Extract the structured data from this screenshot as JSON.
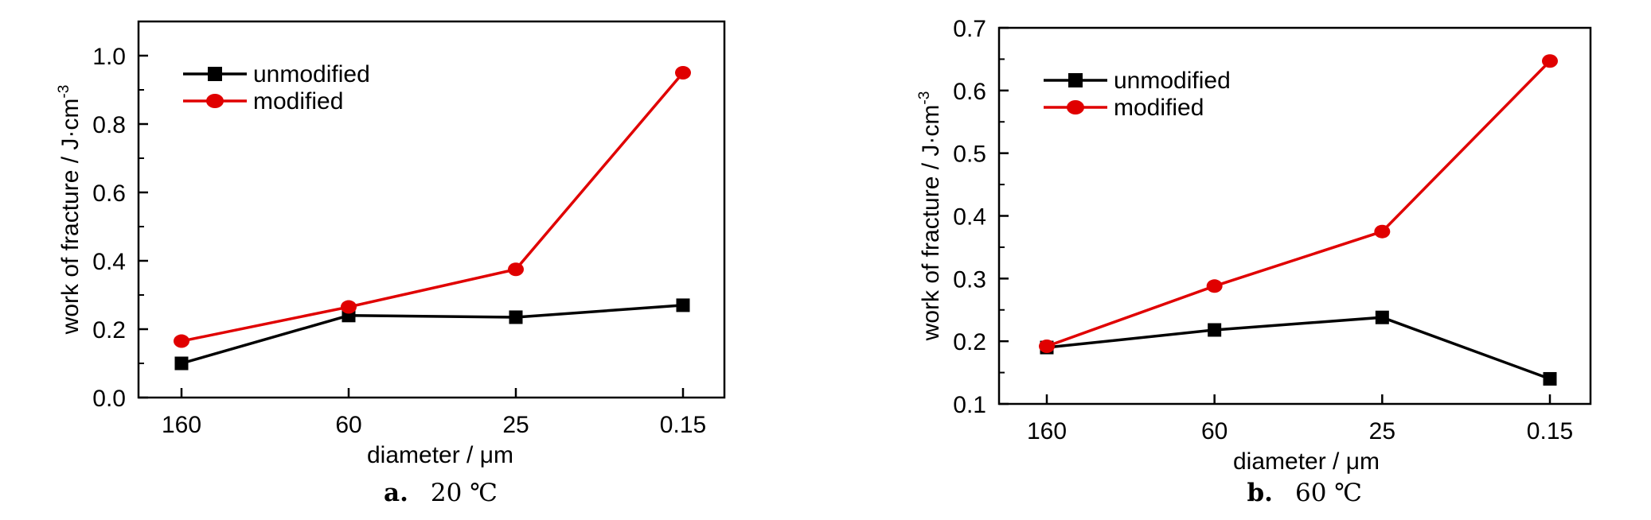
{
  "chart_data": [
    {
      "type": "line",
      "caption_letter": "a.",
      "caption_text": "20 ℃",
      "xlabel": "diameter / μm",
      "ylabel": "work of fracture / J·cm",
      "ylabel_sup": "-3",
      "categories": [
        "160",
        "60",
        "25",
        "0.15"
      ],
      "ylim": [
        0.0,
        1.1
      ],
      "yticks": [
        "0.0",
        "0.2",
        "0.4",
        "0.6",
        "0.8",
        "1.0"
      ],
      "ytick_values": [
        0.0,
        0.2,
        0.4,
        0.6,
        0.8,
        1.0
      ],
      "legend_position": "top-left",
      "series": [
        {
          "name": "unmodified",
          "values": [
            0.1,
            0.24,
            0.235,
            0.27
          ],
          "color": "#000000",
          "marker": "square"
        },
        {
          "name": "modified",
          "values": [
            0.165,
            0.265,
            0.375,
            0.95
          ],
          "color": "#e00000",
          "marker": "circle"
        }
      ]
    },
    {
      "type": "line",
      "caption_letter": "b.",
      "caption_text": "60 ℃",
      "xlabel": "diameter / μm",
      "ylabel": "work of fracture / J·cm",
      "ylabel_sup": "-3",
      "categories": [
        "160",
        "60",
        "25",
        "0.15"
      ],
      "ylim": [
        0.1,
        0.7
      ],
      "yticks": [
        "0.1",
        "0.2",
        "0.3",
        "0.4",
        "0.5",
        "0.6",
        "0.7"
      ],
      "ytick_values": [
        0.1,
        0.2,
        0.3,
        0.4,
        0.5,
        0.6,
        0.7
      ],
      "legend_position": "top-left",
      "series": [
        {
          "name": "unmodified",
          "values": [
            0.19,
            0.218,
            0.238,
            0.14
          ],
          "color": "#000000",
          "marker": "square"
        },
        {
          "name": "modified",
          "values": [
            0.192,
            0.288,
            0.375,
            0.647
          ],
          "color": "#e00000",
          "marker": "circle"
        }
      ]
    }
  ]
}
